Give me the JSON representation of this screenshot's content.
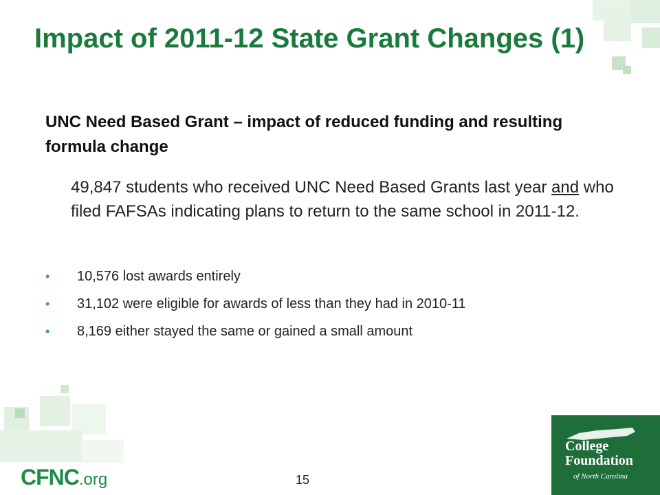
{
  "slide": {
    "title": "Impact of 2011-12 State Grant Changes (1)",
    "subheading": "UNC Need Based Grant – impact of reduced funding and resulting formula change",
    "lead": {
      "before": "49,847 students who received UNC Need Based Grants last year ",
      "underlined": "and",
      "after": " who filed FAFSAs indicating plans to return to the same school in 2011-12."
    },
    "bullets": [
      "10,576 lost awards entirely",
      "31,102 were eligible for awards of less than they had in 2010-11",
      "8,169 either stayed the same or gained a small amount"
    ],
    "bullet_glyph": "•",
    "page_number": "15"
  },
  "branding": {
    "cfnc_main": "CFNC",
    "cfnc_suffix": ".org",
    "logo_line1": "College",
    "logo_line2": "Foundation",
    "logo_line3": "of North Carolina"
  },
  "colors": {
    "title_green": "#1a7a3c",
    "logo_bg": "#1f6e3a",
    "bullet_green": "#3aa655",
    "decor_light_green": "#e3f1e3"
  }
}
